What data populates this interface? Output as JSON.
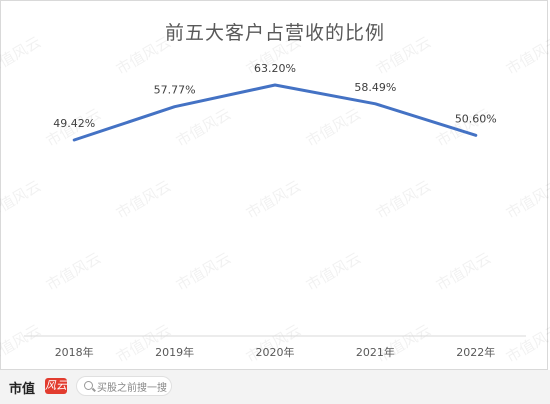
{
  "chart_data": {
    "type": "line",
    "title": "前五大客户占营收的比例",
    "categories": [
      "2018年",
      "2019年",
      "2020年",
      "2021年",
      "2022年"
    ],
    "values": [
      49.42,
      57.77,
      63.2,
      58.49,
      50.6
    ],
    "data_labels": [
      "49.42%",
      "57.77%",
      "63.20%",
      "58.49%",
      "50.60%"
    ],
    "unit": "%",
    "line_color": "#4472c4",
    "grid": false,
    "legend": "none"
  },
  "watermark": {
    "text": "市值风云"
  },
  "footer": {
    "brand": "市值",
    "brand_mark": "风云",
    "search_placeholder": "买股之前搜一搜"
  }
}
